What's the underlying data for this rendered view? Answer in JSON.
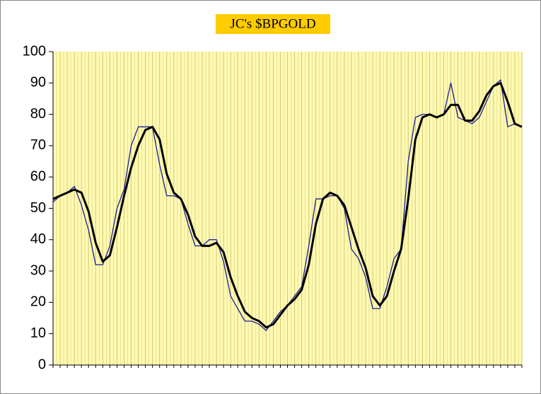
{
  "chart_data": {
    "type": "line",
    "title": "JC's $BPGOLD",
    "categories": [
      null,
      null,
      null,
      null,
      null,
      null,
      null,
      null,
      null,
      null,
      null,
      null,
      null,
      null,
      null,
      null,
      null,
      null,
      null,
      null,
      null,
      null,
      null,
      null,
      null,
      null,
      null,
      null,
      null,
      null,
      null,
      null,
      null,
      null,
      null,
      null,
      null,
      null,
      null,
      null,
      null,
      null,
      null,
      null,
      null,
      null,
      null,
      null,
      null,
      null,
      null,
      null,
      null,
      null,
      null,
      null,
      null,
      null,
      null,
      null,
      null,
      null,
      null,
      null,
      null,
      null,
      null
    ],
    "series": [
      {
        "color": "#1c1c96",
        "values": [
          52,
          54,
          55,
          57,
          51,
          43,
          32,
          32,
          38,
          50,
          56,
          70,
          76,
          76,
          76,
          64,
          54,
          54,
          53,
          45,
          38,
          38,
          40,
          40,
          33,
          22,
          18,
          14,
          14,
          13,
          11,
          14,
          17,
          19,
          22,
          25,
          38,
          53,
          53,
          54,
          54,
          50,
          37,
          34,
          28,
          18,
          18,
          25,
          34,
          37,
          65,
          79,
          80,
          80,
          79,
          80,
          90,
          79,
          78,
          77,
          79,
          84,
          89,
          91,
          76,
          77,
          76
        ]
      },
      {
        "color": "#000000",
        "values": [
          53,
          54,
          55,
          56,
          55,
          49,
          39,
          33,
          35,
          44,
          54,
          63,
          70,
          75,
          76,
          72,
          61,
          55,
          53,
          48,
          41,
          38,
          38,
          39,
          36,
          28,
          22,
          17,
          15,
          14,
          12,
          13,
          16,
          19,
          21,
          24,
          32,
          45,
          53,
          55,
          54,
          51,
          44,
          37,
          31,
          22,
          19,
          22,
          30,
          37,
          53,
          72,
          79,
          80,
          79,
          80,
          83,
          83,
          78,
          78,
          81,
          86,
          89,
          90,
          84,
          77,
          76
        ]
      }
    ],
    "ylim": [
      0,
      100
    ],
    "yticks": [
      0,
      10,
      20,
      30,
      40,
      50,
      60,
      70,
      80,
      90,
      100
    ],
    "grid": true
  }
}
